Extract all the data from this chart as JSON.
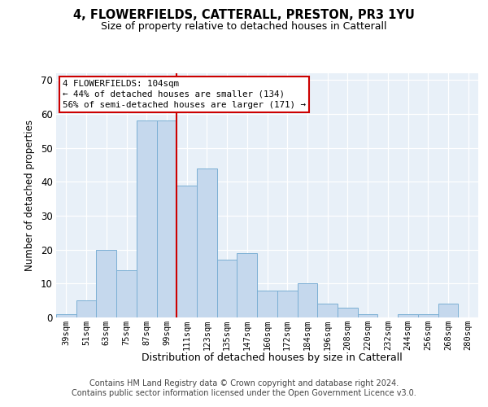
{
  "title_line1": "4, FLOWERFIELDS, CATTERALL, PRESTON, PR3 1YU",
  "title_line2": "Size of property relative to detached houses in Catterall",
  "xlabel": "Distribution of detached houses by size in Catterall",
  "ylabel": "Number of detached properties",
  "bin_labels": [
    "39sqm",
    "51sqm",
    "63sqm",
    "75sqm",
    "87sqm",
    "99sqm",
    "111sqm",
    "123sqm",
    "135sqm",
    "147sqm",
    "160sqm",
    "172sqm",
    "184sqm",
    "196sqm",
    "208sqm",
    "220sqm",
    "232sqm",
    "244sqm",
    "256sqm",
    "268sqm",
    "280sqm"
  ],
  "bar_heights": [
    1,
    5,
    20,
    14,
    58,
    58,
    39,
    44,
    17,
    19,
    8,
    8,
    10,
    4,
    3,
    1,
    0,
    1,
    1,
    4,
    0
  ],
  "bar_color": "#c5d8ed",
  "bar_edge_color": "#7bafd4",
  "red_line_x": 5.5,
  "annotation_line1": "4 FLOWERFIELDS: 104sqm",
  "annotation_line2": "← 44% of detached houses are smaller (134)",
  "annotation_line3": "56% of semi-detached houses are larger (171) →",
  "annotation_box_facecolor": "#ffffff",
  "annotation_box_edgecolor": "#cc0000",
  "red_line_color": "#cc0000",
  "ylim": [
    0,
    72
  ],
  "yticks": [
    0,
    10,
    20,
    30,
    40,
    50,
    60,
    70
  ],
  "plot_bg_color": "#e8f0f8",
  "footer_line1": "Contains HM Land Registry data © Crown copyright and database right 2024.",
  "footer_line2": "Contains public sector information licensed under the Open Government Licence v3.0."
}
